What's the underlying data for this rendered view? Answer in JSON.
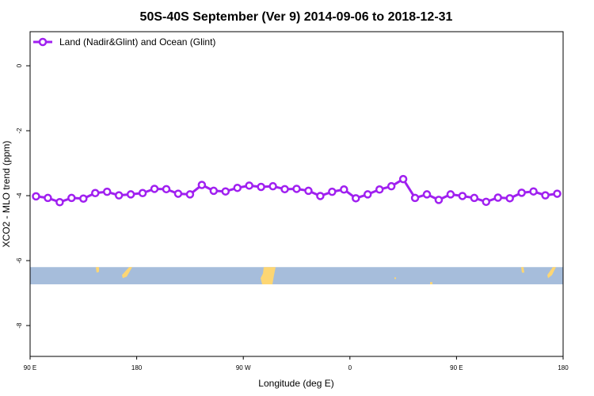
{
  "chart_data": {
    "type": "line",
    "title": "50S-40S September (Ver 9)   2014-09-06 to 2018-12-31",
    "xlabel": "Longitude (deg E)",
    "ylabel": "XCO2 - MLO trend (ppm)",
    "xlim": [
      90,
      540
    ],
    "ylim": [
      -8.95,
      1.05
    ],
    "xticks": [
      {
        "value": 90,
        "label": "90 E"
      },
      {
        "value": 180,
        "label": "180"
      },
      {
        "value": 270,
        "label": "90 W"
      },
      {
        "value": 360,
        "label": "0"
      },
      {
        "value": 450,
        "label": "90 E"
      },
      {
        "value": 540,
        "label": "180"
      }
    ],
    "yticks": [
      {
        "value": 0,
        "label": "0"
      },
      {
        "value": -2,
        "label": "-2"
      },
      {
        "value": -4,
        "label": "-4"
      },
      {
        "value": -6,
        "label": "-6"
      },
      {
        "value": -8,
        "label": "-8"
      }
    ],
    "grid": false,
    "legend_position": "top-left",
    "series": [
      {
        "name": "Land (Nadir&Glint) and Ocean (Glint)",
        "color": "#a020f0",
        "x": [
          95,
          105,
          115,
          125,
          135,
          145,
          155,
          165,
          175,
          185,
          195,
          205,
          215,
          225,
          235,
          245,
          255,
          265,
          275,
          285,
          295,
          305,
          315,
          325,
          335,
          345,
          355,
          365,
          375,
          385,
          395,
          405,
          415,
          425,
          435,
          445,
          455,
          465,
          475,
          485,
          495,
          505,
          515,
          525,
          535
        ],
        "values": [
          -4.02,
          -4.07,
          -4.2,
          -4.07,
          -4.09,
          -3.92,
          -3.88,
          -3.99,
          -3.96,
          -3.92,
          -3.79,
          -3.8,
          -3.94,
          -3.96,
          -3.67,
          -3.85,
          -3.87,
          -3.76,
          -3.69,
          -3.73,
          -3.71,
          -3.8,
          -3.79,
          -3.85,
          -4.01,
          -3.88,
          -3.81,
          -4.08,
          -3.96,
          -3.81,
          -3.71,
          -3.49,
          -4.07,
          -3.96,
          -4.13,
          -3.96,
          -4.01,
          -4.07,
          -4.19,
          -4.06,
          -4.08,
          -3.91,
          -3.87,
          -3.99,
          -3.94
        ]
      }
    ],
    "map_strip": {
      "ocean_color": "#a6bddb",
      "land_color": "#fdd673",
      "y_range": [
        -6.73,
        -6.2
      ]
    }
  }
}
